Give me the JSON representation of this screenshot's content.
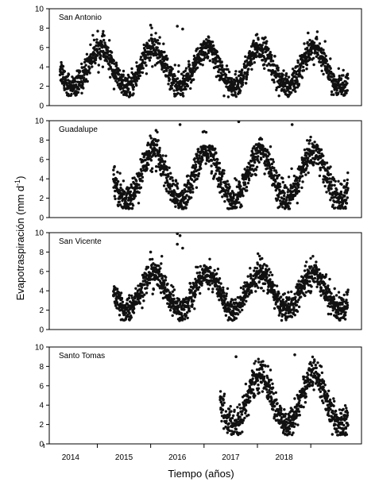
{
  "figure": {
    "ylabel": "Evapotraspiración (mm d",
    "ylabel_sup": "-1",
    "ylabel_close": ")",
    "xlabel": "Tiempo (años)"
  },
  "chart_data": [
    {
      "type": "scatter",
      "station": "San Antonio",
      "ylim": [
        0,
        10
      ],
      "yticks": [
        0,
        2,
        4,
        6,
        8,
        10
      ],
      "x_start": 2013.8,
      "x_end": 2019.2,
      "mean": 3.9,
      "amplitude": 2.0,
      "peak_phase": 0.55,
      "noise": 0.7,
      "points_per_year": 320,
      "outliers": [
        {
          "x": 2015.5,
          "y": 8.3
        },
        {
          "x": 2016.0,
          "y": 8.2
        },
        {
          "x": 2016.1,
          "y": 7.9
        },
        {
          "x": 2018.45,
          "y": 7.5
        }
      ]
    },
    {
      "type": "scatter",
      "station": "Guadalupe",
      "ylim": [
        0,
        10
      ],
      "yticks": [
        0,
        2,
        4,
        6,
        8,
        10
      ],
      "x_start": 2014.8,
      "x_end": 2019.2,
      "mean": 4.3,
      "amplitude": 2.5,
      "peak_phase": 0.55,
      "noise": 0.8,
      "points_per_year": 320,
      "outliers": [
        {
          "x": 2015.6,
          "y": 9.0
        },
        {
          "x": 2016.05,
          "y": 9.6
        },
        {
          "x": 2017.15,
          "y": 9.9
        },
        {
          "x": 2018.15,
          "y": 9.6
        }
      ]
    },
    {
      "type": "scatter",
      "station": "San Vicente",
      "ylim": [
        0,
        10
      ],
      "yticks": [
        0,
        2,
        4,
        6,
        8,
        10
      ],
      "x_start": 2014.8,
      "x_end": 2019.2,
      "mean": 3.9,
      "amplitude": 1.9,
      "peak_phase": 0.55,
      "noise": 0.7,
      "points_per_year": 320,
      "outliers": [
        {
          "x": 2016.0,
          "y": 9.9
        },
        {
          "x": 2016.05,
          "y": 9.7
        },
        {
          "x": 2016.0,
          "y": 8.8
        },
        {
          "x": 2016.1,
          "y": 8.4
        },
        {
          "x": 2015.5,
          "y": 8.0
        }
      ]
    },
    {
      "type": "scatter",
      "station": "Santo Tomas",
      "ylim": [
        0,
        10
      ],
      "yticks": [
        0,
        2,
        4,
        6,
        8,
        10
      ],
      "x_start": 2016.8,
      "x_end": 2019.2,
      "mean": 4.5,
      "amplitude": 2.6,
      "peak_phase": 0.55,
      "noise": 0.8,
      "points_per_year": 320,
      "outliers": [
        {
          "x": 2017.1,
          "y": 9.0
        },
        {
          "x": 2018.2,
          "y": 9.2
        }
      ]
    }
  ],
  "x_axis": {
    "xlim": [
      2013.6,
      2019.45
    ],
    "tick_labels": [
      {
        "label": "2014",
        "x": 2014.0
      },
      {
        "label": "2015",
        "x": 2015.0
      },
      {
        "label": "2016",
        "x": 2016.0
      },
      {
        "label": "2017",
        "x": 2017.0
      },
      {
        "label": "2018",
        "x": 2018.0
      }
    ],
    "ticks": [
      2013.5,
      2014.5,
      2015.5,
      2016.5,
      2017.5,
      2018.5
    ]
  },
  "colors": {
    "marker": "#111111",
    "axis": "#000000",
    "background": "#ffffff"
  }
}
